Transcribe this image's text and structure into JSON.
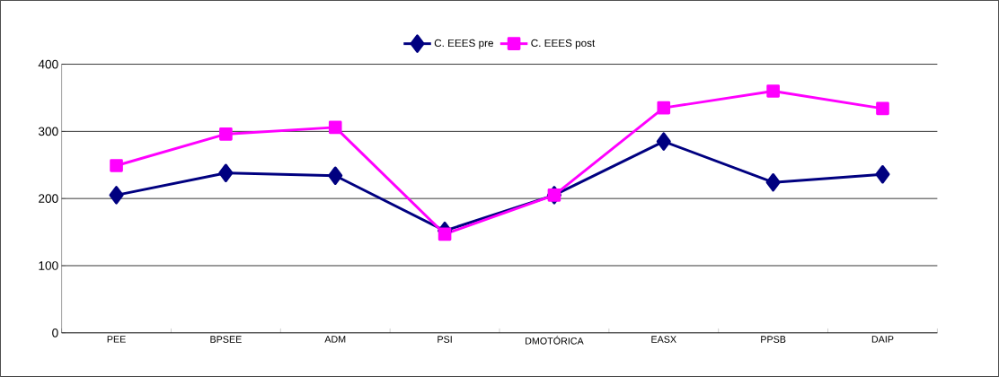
{
  "chart_data": {
    "type": "line",
    "categories": [
      "PEE",
      "BPSEE",
      "ADM",
      "PSI",
      "DMOTÓRICA",
      "EASX",
      "PPSB",
      "DAIP"
    ],
    "series": [
      {
        "name": "C. EEES pre",
        "color": "#000080",
        "marker": "diamond",
        "values": [
          205,
          238,
          234,
          152,
          205,
          285,
          224,
          236
        ]
      },
      {
        "name": "C. EEES post",
        "color": "#ff00ff",
        "marker": "square",
        "values": [
          249,
          296,
          306,
          147,
          205,
          335,
          360,
          334
        ]
      }
    ],
    "ylim": [
      0,
      400
    ],
    "yticks": [
      0,
      100,
      200,
      300,
      400
    ],
    "grid": "y",
    "legend": "top",
    "line_style": "solid"
  }
}
